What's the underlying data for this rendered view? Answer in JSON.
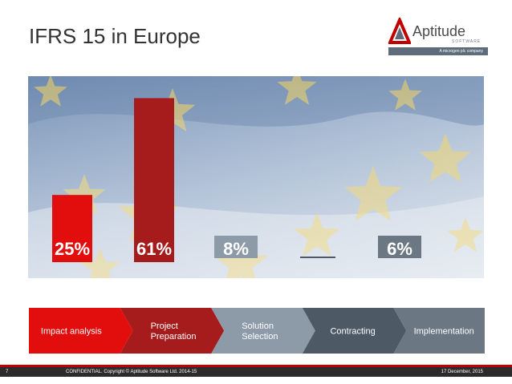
{
  "slide": {
    "title": "IFRS 15 in Europe"
  },
  "logo": {
    "name": "Aptitude",
    "tagline": "SOFTWARE",
    "sub": "A microgen plc company"
  },
  "chart_data": {
    "type": "bar",
    "categories": [
      "Impact analysis",
      "Project Preparation",
      "Solution Selection",
      "Contracting",
      "Implementation"
    ],
    "values": [
      25,
      61,
      8,
      0,
      6
    ],
    "value_labels": [
      "25%",
      "61%",
      "8%",
      "",
      "6%"
    ],
    "title": "",
    "xlabel": "",
    "ylabel": "",
    "ylim": [
      0,
      65
    ],
    "grid": false,
    "colors": [
      "#e20d0d",
      "#a61b1b",
      "#8d9aa8",
      "#4d5a66",
      "#6b7783"
    ]
  },
  "process": {
    "steps": [
      {
        "label_lines": [
          "Impact analysis"
        ],
        "color": "#e20d0d"
      },
      {
        "label_lines": [
          "Project",
          "Preparation"
        ],
        "color": "#a61b1b"
      },
      {
        "label_lines": [
          "Solution",
          "Selection"
        ],
        "color": "#8d9aa8"
      },
      {
        "label_lines": [
          "Contracting"
        ],
        "color": "#4d5a66"
      },
      {
        "label_lines": [
          "Implementation"
        ],
        "color": "#6b7783"
      }
    ]
  },
  "footer": {
    "page": "7",
    "copyright": "CONFIDENTIAL. Copyright © Aptitude Software Ltd. 2014-15",
    "date": "17 December, 2015"
  }
}
